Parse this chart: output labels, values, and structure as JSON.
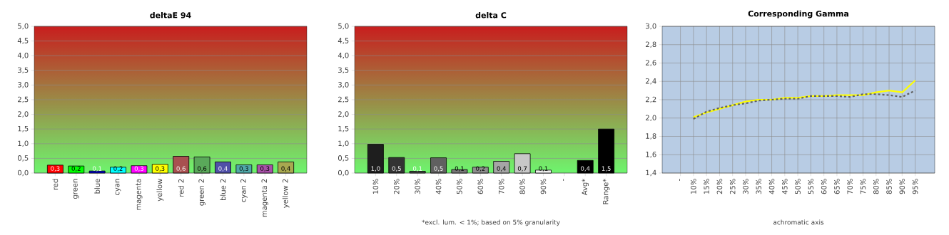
{
  "chart_data": [
    {
      "type": "bar",
      "title": "deltaE 94",
      "categories": [
        "red",
        "green",
        "blue",
        "cyan",
        "magenta",
        "yellow",
        "red 2",
        "green 2",
        "blue 2",
        "cyan 2",
        "magenta 2",
        "yellow 2"
      ],
      "values": [
        0.27,
        0.24,
        0.07,
        0.2,
        0.25,
        0.3,
        0.57,
        0.55,
        0.38,
        0.28,
        0.28,
        0.38
      ],
      "colors": [
        "#ff0000",
        "#00ff00",
        "#0000cc",
        "#00ffff",
        "#ff00ff",
        "#ffff00",
        "#a85050",
        "#5aa85a",
        "#5050a8",
        "#50a8a8",
        "#a850a8",
        "#a8a850"
      ],
      "value_labels": [
        "0,3",
        "0,2",
        "0,1",
        "0,2",
        "0,3",
        "0,3",
        "0,6",
        "0,6",
        "0,4",
        "0,3",
        "0,3",
        "0,4"
      ],
      "ylim": [
        0,
        5
      ],
      "yticks": [
        {
          "value": 0,
          "label": "0,0"
        },
        {
          "value": 0.5,
          "label": "0,5"
        },
        {
          "value": 1,
          "label": "1,0"
        },
        {
          "value": 1.5,
          "label": "1,5"
        },
        {
          "value": 2,
          "label": "2,0"
        },
        {
          "value": 2.5,
          "label": "2,5"
        },
        {
          "value": 3,
          "label": "3,0"
        },
        {
          "value": 3.5,
          "label": "3,5"
        },
        {
          "value": 4,
          "label": "4,0"
        },
        {
          "value": 4.5,
          "label": "4,5"
        },
        {
          "value": 5,
          "label": "5,0"
        }
      ],
      "grid": "y"
    },
    {
      "type": "bar",
      "title": "delta C",
      "categories": [
        "10%",
        "20%",
        "30%",
        "40%",
        "50%",
        "60%",
        "70%",
        "80%",
        "90%",
        "-",
        "Avg*",
        "Range*"
      ],
      "values": [
        0.98,
        0.53,
        0.06,
        0.52,
        0.12,
        0.2,
        0.4,
        0.66,
        0.1,
        null,
        0.43,
        1.5
      ],
      "colors": [
        "#1e1e1e",
        "#333333",
        "#4a4a4a",
        "#606060",
        "#777777",
        "#8e8e8e",
        "#a5a5a5",
        "#c8c8c8",
        "#f0f0f0",
        "#000000",
        "#000000",
        "#000000"
      ],
      "value_labels": [
        "1,0",
        "0,5",
        "0,1",
        "0,5",
        "0,1",
        "0,2",
        "0,4",
        "0,7",
        "0,1",
        null,
        "0,4",
        "1,5"
      ],
      "ylim": [
        0,
        5
      ],
      "yticks": [
        {
          "value": 0,
          "label": "0,0"
        },
        {
          "value": 0.5,
          "label": "0,5"
        },
        {
          "value": 1,
          "label": "1,0"
        },
        {
          "value": 1.5,
          "label": "1,5"
        },
        {
          "value": 2,
          "label": "2,0"
        },
        {
          "value": 2.5,
          "label": "2,5"
        },
        {
          "value": 3,
          "label": "3,0"
        },
        {
          "value": 3.5,
          "label": "3,5"
        },
        {
          "value": 4,
          "label": "4,0"
        },
        {
          "value": 4.5,
          "label": "4,5"
        },
        {
          "value": 5,
          "label": "5,0"
        }
      ],
      "grid": "y",
      "annotations": [
        "*excl. lum. < 1%; based on 5% granularity"
      ]
    },
    {
      "type": "line",
      "title": "Corresponding Gamma",
      "xlabel": "achromatic axis",
      "categories": [
        "-",
        "10%",
        "15%",
        "20%",
        "25%",
        "30%",
        "35%",
        "40%",
        "45%",
        "50%",
        "55%",
        "60%",
        "65%",
        "70%",
        "75%",
        "80%",
        "85%",
        "90%",
        "95%"
      ],
      "series": [
        {
          "color": "#ffff00",
          "line_style": "solid",
          "values": [
            null,
            2.01,
            2.06,
            2.1,
            2.14,
            2.18,
            2.2,
            2.2,
            2.22,
            2.22,
            2.24,
            2.24,
            2.25,
            2.25,
            2.25,
            2.28,
            2.3,
            2.28,
            2.41
          ]
        },
        {
          "color": "#606060",
          "line_style": "dashed",
          "values": [
            null,
            1.99,
            2.07,
            2.11,
            2.14,
            2.16,
            2.19,
            2.2,
            2.21,
            2.21,
            2.24,
            2.24,
            2.24,
            2.23,
            2.26,
            2.26,
            2.25,
            2.23,
            2.3
          ]
        }
      ],
      "ylim": [
        1.4,
        3.0
      ],
      "yticks": [
        {
          "value": 1.4,
          "label": "1,4"
        },
        {
          "value": 1.6,
          "label": "1,6"
        },
        {
          "value": 1.8,
          "label": "1,8"
        },
        {
          "value": 2.0,
          "label": "2,0"
        },
        {
          "value": 2.2,
          "label": "2,2"
        },
        {
          "value": 2.4,
          "label": "2,4"
        },
        {
          "value": 2.6,
          "label": "2,6"
        },
        {
          "value": 2.8,
          "label": "2,8"
        },
        {
          "value": 3.0,
          "label": "3,0"
        }
      ],
      "grid": true
    }
  ]
}
